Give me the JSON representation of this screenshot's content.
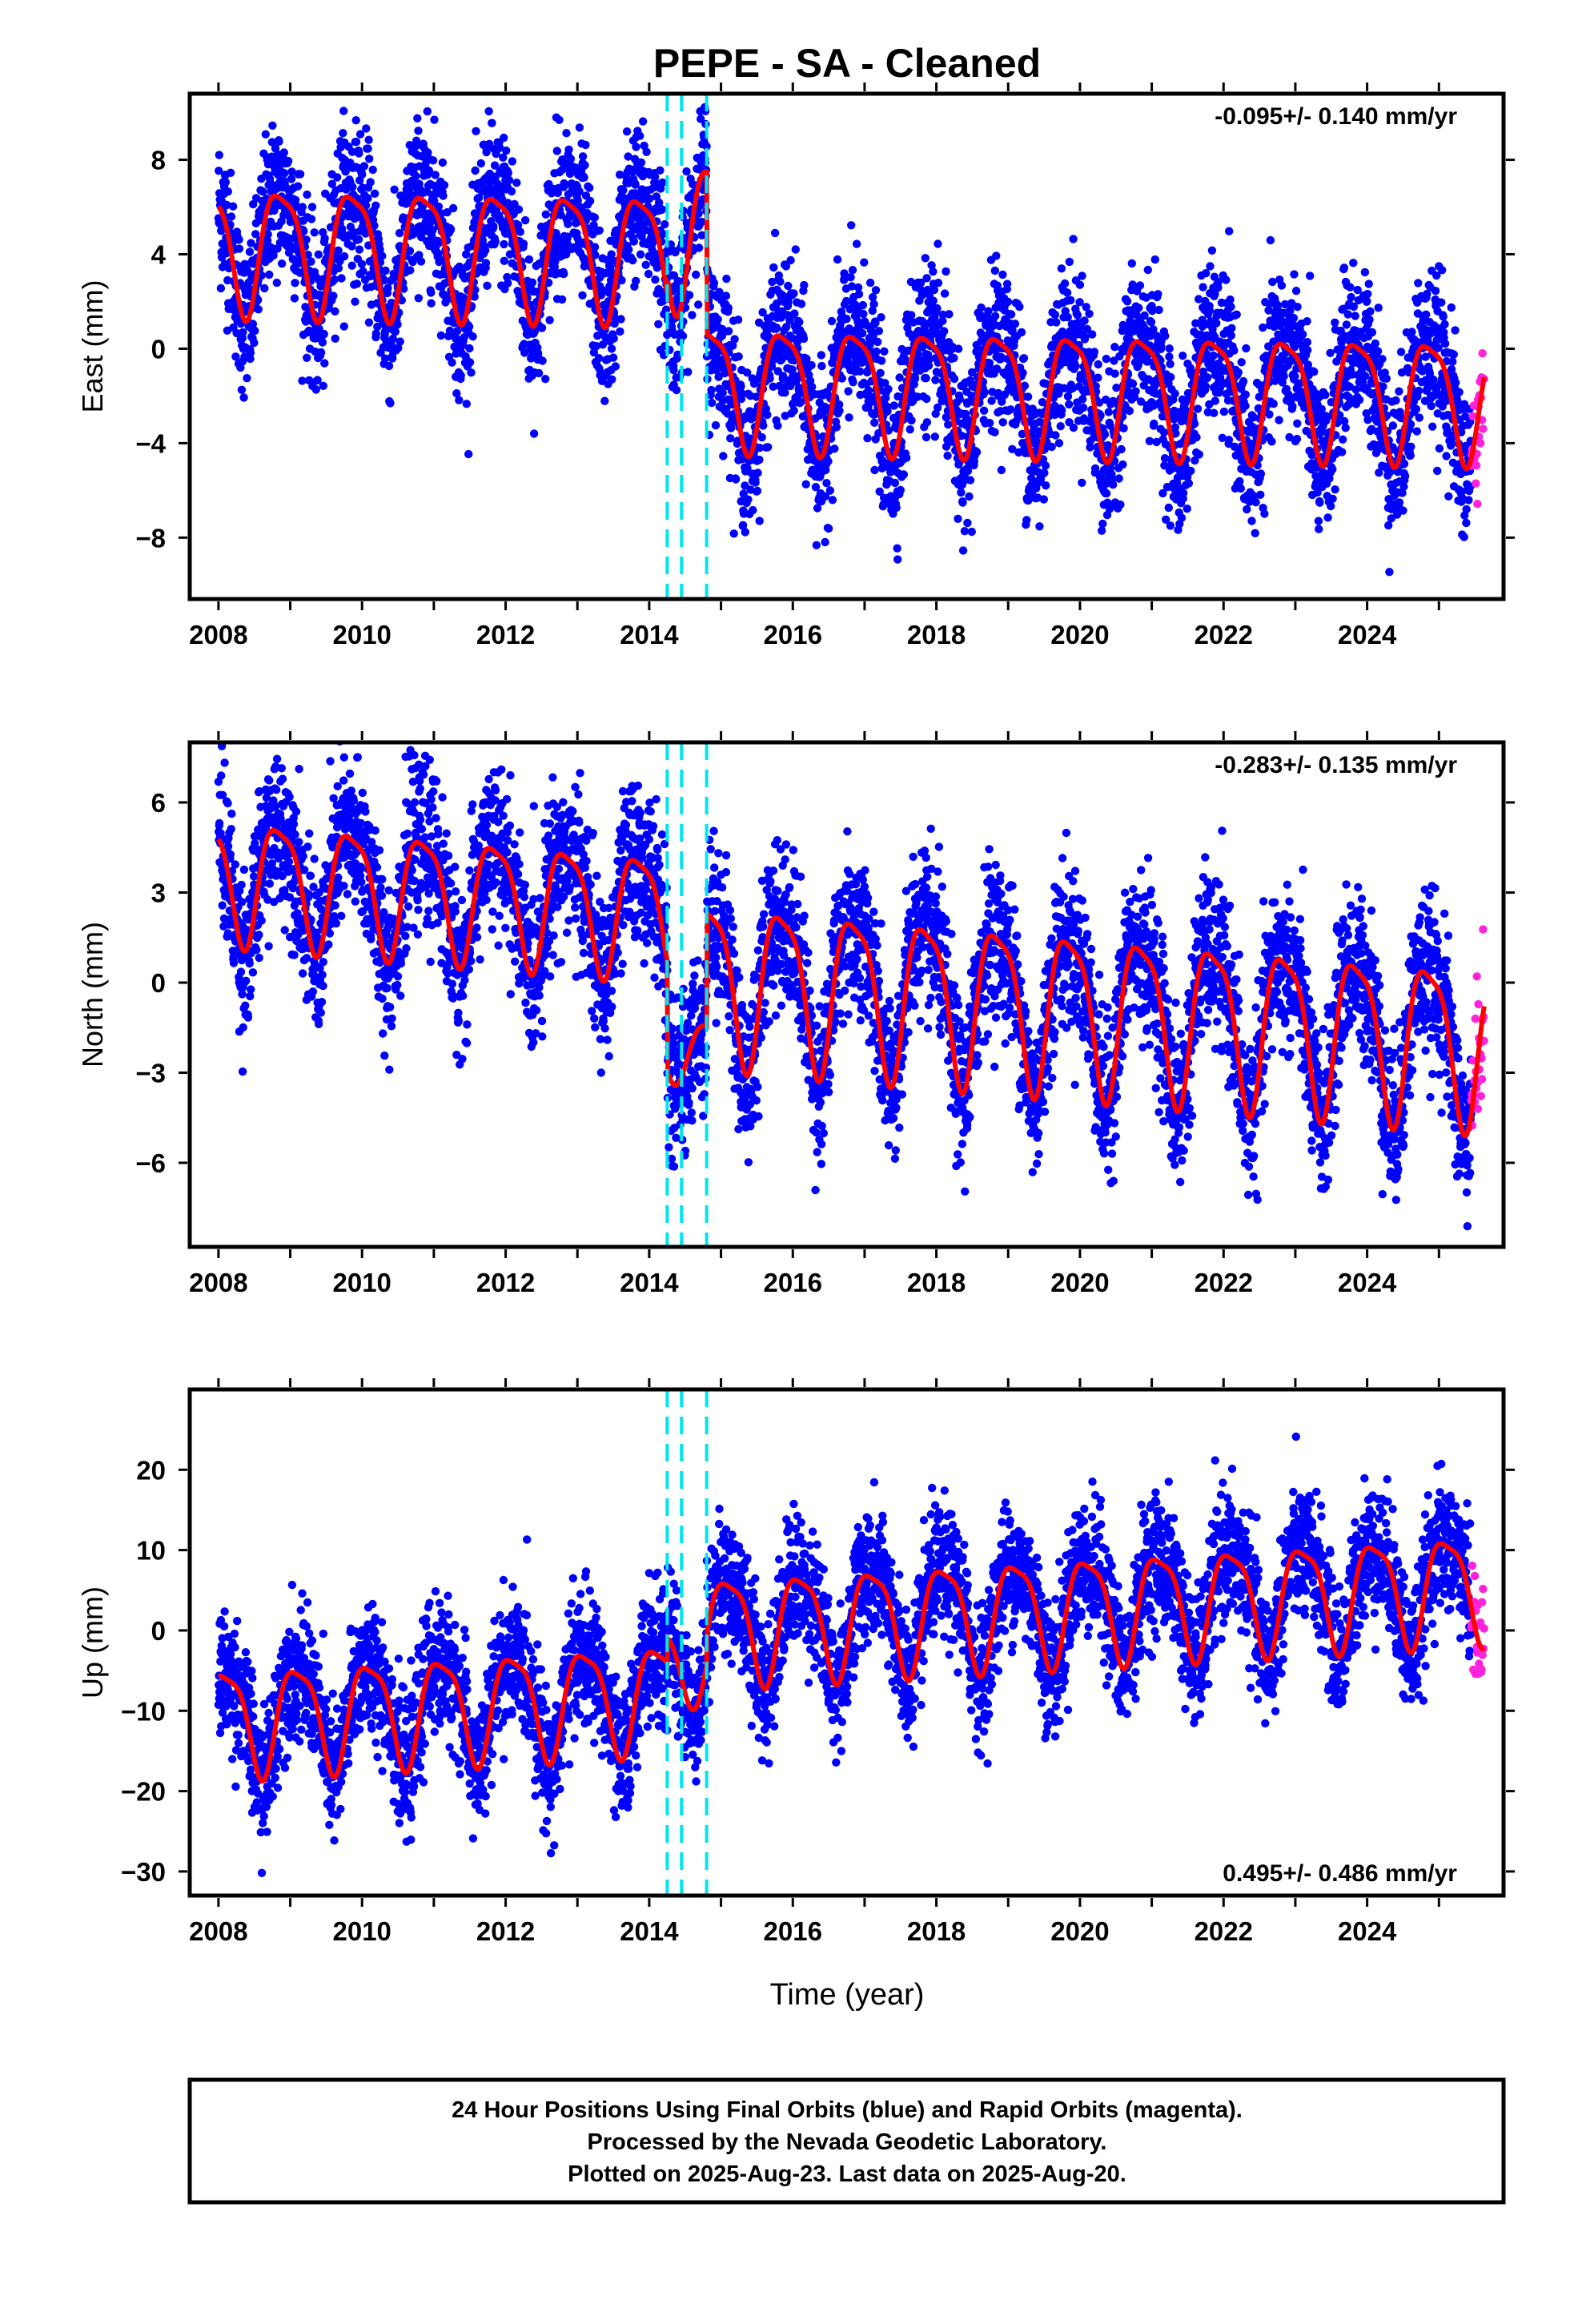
{
  "chart_data": {
    "type": "scatter",
    "title": "PEPE  - SA - Cleaned",
    "xlabel": "Time (year)",
    "xlim": [
      2007.6,
      2025.9
    ],
    "x_ticks": [
      "2008",
      "2010",
      "2012",
      "2014",
      "2016",
      "2018",
      "2020",
      "2022",
      "2024"
    ],
    "offset_epochs": [
      2014.25,
      2014.45,
      2014.8
    ],
    "panels": [
      {
        "name": "east",
        "ylabel": "East (mm)",
        "ylim": [
          -10.6,
          10.8
        ],
        "y_ticks": [
          8,
          4,
          0,
          -4,
          -8
        ],
        "y_tick_labels": [
          "8",
          "4",
          "0",
          "−4",
          "−8"
        ],
        "rate_label": "-0.095+/- 0.140 mm/yr",
        "model": {
          "pre_mean": 4.0,
          "pre_amp": 2.6,
          "mid_mean": 5.0,
          "mid_amp": 3.0,
          "post_mean": -1.5,
          "post_amp": 2.5,
          "slope": -0.05,
          "phase": 0.62,
          "noise": 1.6
        }
      },
      {
        "name": "north",
        "ylabel": "North (mm)",
        "ylim": [
          -8.8,
          8.0
        ],
        "y_ticks": [
          6,
          3,
          0,
          -3,
          -6
        ],
        "y_tick_labels": [
          "6",
          "3",
          "0",
          "−3",
          "−6"
        ],
        "rate_label": "-0.283+/- 0.135 mm/yr",
        "model": {
          "pre_mean": 2.0,
          "pre_amp": 2.0,
          "mid_mean": -2.5,
          "mid_amp": 1.0,
          "post_mean": 0.0,
          "post_amp": 2.6,
          "slope": -0.2,
          "phase": 0.6,
          "noise": 1.3
        }
      },
      {
        "name": "up",
        "ylabel": "Up (mm)",
        "ylim": [
          -33,
          30
        ],
        "y_ticks": [
          20,
          10,
          0,
          -10,
          -20,
          -30
        ],
        "y_tick_labels": [
          "20",
          "10",
          "0",
          "−10",
          "−20",
          "−30"
        ],
        "rate_label": "0.495+/- 0.486 mm/yr",
        "model": {
          "pre_mean": -7.0,
          "pre_amp": 6.5,
          "mid_mean": -3.0,
          "mid_amp": 5.0,
          "post_mean": 1.0,
          "post_amp": 6.5,
          "slope": 0.5,
          "phase": 0.85,
          "noise": 4.0
        }
      }
    ],
    "series": [
      {
        "name": "Final Orbits",
        "color": "#0000ff",
        "x_range": [
          2008.0,
          2025.45
        ]
      },
      {
        "name": "Rapid Orbits",
        "color": "#ff22dd",
        "x_range": [
          2025.45,
          2025.63
        ]
      },
      {
        "name": "Model fit",
        "color": "#ff0000"
      }
    ],
    "colors": {
      "offset_line": "#00e5ee",
      "fit": "#ff0000",
      "final": "#0000ff",
      "rapid": "#ff22dd"
    },
    "footer_lines": [
      "24 Hour Positions Using Final Orbits (blue) and Rapid Orbits (magenta).",
      "Processed by the Nevada Geodetic Laboratory.",
      "Plotted on 2025-Aug-23. Last data on 2025-Aug-20."
    ]
  }
}
